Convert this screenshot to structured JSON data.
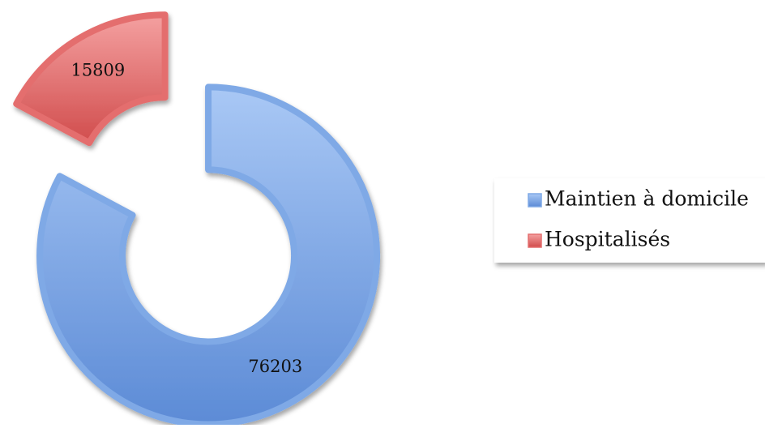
{
  "chart_data": {
    "type": "doughnut",
    "categories": [
      "Maintien à domicile",
      "Hospitalisés"
    ],
    "values": [
      76203,
      15809
    ],
    "colors": [
      "#7fa9e6",
      "#e46e6e"
    ],
    "legend": "right",
    "exploded": true
  }
}
